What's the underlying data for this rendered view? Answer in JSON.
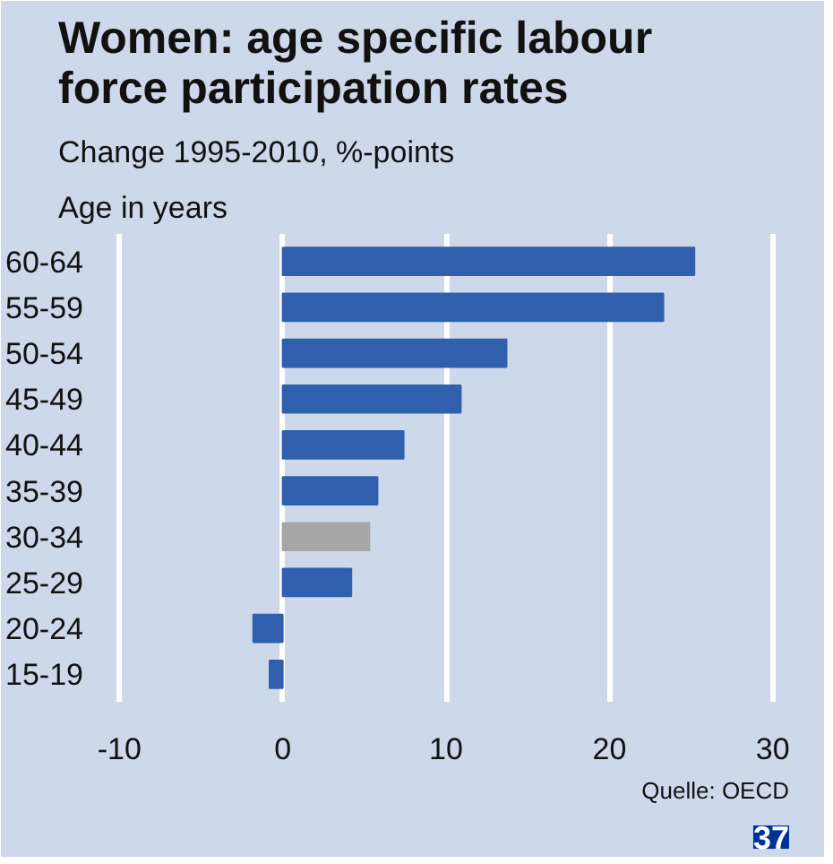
{
  "chart_data": {
    "type": "bar",
    "orientation": "horizontal",
    "title": "Women: age specific labour force participation rates",
    "subtitle": "Change 1995-2010, %-points",
    "ylabel": "Age in years",
    "categories": [
      "60-64",
      "55-59",
      "50-54",
      "45-49",
      "40-44",
      "35-39",
      "30-34",
      "25-29",
      "20-24",
      "15-19"
    ],
    "values": [
      25.2,
      23.3,
      13.7,
      10.9,
      7.4,
      5.8,
      5.3,
      4.2,
      -1.8,
      -0.8
    ],
    "colors": [
      "#3060ad",
      "#3060ad",
      "#3060ad",
      "#3060ad",
      "#3060ad",
      "#3060ad",
      "#a6a6a6",
      "#3060ad",
      "#3060ad",
      "#3060ad"
    ],
    "xlim": [
      -11,
      31
    ],
    "xticks": [
      -10,
      0,
      10,
      20,
      30
    ],
    "grid": "x",
    "annotations": [
      "Quelle: OECD",
      "37"
    ]
  }
}
